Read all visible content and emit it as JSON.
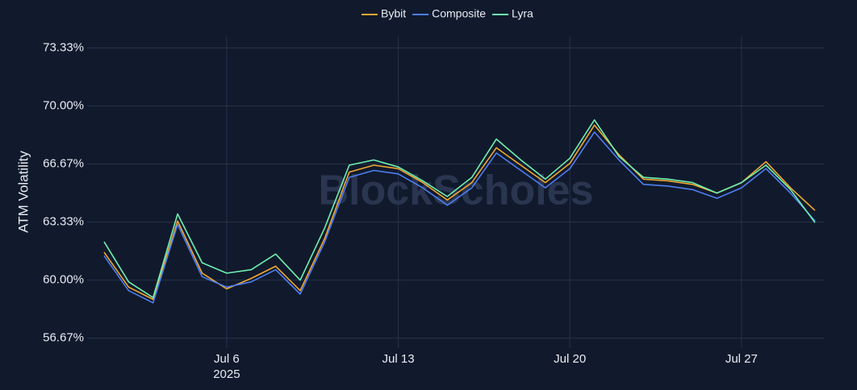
{
  "chart_data": {
    "type": "line",
    "watermark": "BlockScholes",
    "ylabel": "ATM Volatility",
    "x": [
      "2025-07-01",
      "2025-07-02",
      "2025-07-03",
      "2025-07-04",
      "2025-07-05",
      "2025-07-06",
      "2025-07-07",
      "2025-07-08",
      "2025-07-09",
      "2025-07-10",
      "2025-07-11",
      "2025-07-12",
      "2025-07-13",
      "2025-07-14",
      "2025-07-15",
      "2025-07-16",
      "2025-07-17",
      "2025-07-18",
      "2025-07-19",
      "2025-07-20",
      "2025-07-21",
      "2025-07-22",
      "2025-07-23",
      "2025-07-24",
      "2025-07-25",
      "2025-07-26",
      "2025-07-27",
      "2025-07-28",
      "2025-07-29",
      "2025-07-30"
    ],
    "series": [
      {
        "name": "Bybit",
        "color": "#f0a830",
        "values": [
          61.6,
          59.6,
          58.9,
          63.4,
          60.4,
          59.5,
          60.1,
          60.8,
          59.4,
          62.4,
          66.2,
          66.6,
          66.4,
          65.6,
          64.6,
          65.6,
          67.6,
          66.6,
          65.6,
          66.7,
          68.9,
          67.2,
          65.8,
          65.7,
          65.5,
          65.0,
          65.6,
          66.8,
          65.3,
          64.0
        ]
      },
      {
        "name": "Composite",
        "color": "#4f7ef0",
        "values": [
          61.4,
          59.4,
          58.7,
          63.2,
          60.2,
          59.6,
          59.9,
          60.6,
          59.2,
          62.2,
          65.9,
          66.3,
          66.1,
          65.3,
          64.3,
          65.3,
          67.3,
          66.3,
          65.3,
          66.4,
          68.5,
          66.9,
          65.5,
          65.4,
          65.2,
          64.7,
          65.3,
          66.4,
          65.0,
          63.4
        ]
      },
      {
        "name": "Lyra",
        "color": "#6ff0b0",
        "values": [
          62.2,
          59.9,
          59.0,
          63.8,
          61.0,
          60.4,
          60.6,
          61.5,
          60.0,
          63.0,
          66.6,
          66.9,
          66.5,
          65.7,
          64.8,
          65.9,
          68.1,
          66.9,
          65.8,
          67.0,
          69.2,
          67.1,
          65.9,
          65.8,
          65.6,
          65.0,
          65.6,
          66.6,
          65.2,
          63.3
        ]
      }
    ],
    "xlim": [
      "2025-06-30",
      "2025-07-30"
    ],
    "xticks": [
      {
        "value": "2025-07-06",
        "label": "Jul 6"
      },
      {
        "value": "2025-07-13",
        "label": "Jul 13"
      },
      {
        "value": "2025-07-20",
        "label": "Jul 20"
      },
      {
        "value": "2025-07-27",
        "label": "Jul 27"
      }
    ],
    "xtick_year": "2025",
    "ylim": [
      56.1,
      74.0
    ],
    "yticks": [
      {
        "value": 56.67,
        "label": "56.67%"
      },
      {
        "value": 60.0,
        "label": "60.00%"
      },
      {
        "value": 63.33,
        "label": "63.33%"
      },
      {
        "value": 66.67,
        "label": "66.67%"
      },
      {
        "value": 70.0,
        "label": "70.00%"
      },
      {
        "value": 73.33,
        "label": "73.33%"
      }
    ],
    "grid": true,
    "legend": "top"
  }
}
